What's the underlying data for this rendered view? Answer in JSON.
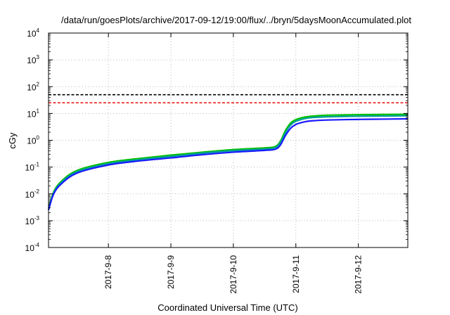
{
  "chart_data": {
    "type": "line",
    "title": "/data/run/goesPlots/archive/2017-09-12/19:00/flux/../bryn/5daysMoonAccumulated.plot",
    "xlabel": "Coordinated Universal Time (UTC)",
    "ylabel": "cGy",
    "y_scale": "log",
    "ylim": [
      0.0001,
      10000
    ],
    "y_ticks": [
      {
        "base": "10",
        "exp": "-4",
        "value": 0.0001
      },
      {
        "base": "10",
        "exp": "-3",
        "value": 0.001
      },
      {
        "base": "10",
        "exp": "-2",
        "value": 0.01
      },
      {
        "base": "10",
        "exp": "-1",
        "value": 0.1
      },
      {
        "base": "10",
        "exp": "0",
        "value": 1
      },
      {
        "base": "10",
        "exp": "1",
        "value": 10
      },
      {
        "base": "10",
        "exp": "2",
        "value": 100
      },
      {
        "base": "10",
        "exp": "3",
        "value": 1000
      },
      {
        "base": "10",
        "exp": "4",
        "value": 10000
      }
    ],
    "xlim": [
      "2017-09-07 01:00",
      "2017-09-12 19:00"
    ],
    "x_ticks": [
      "2017-9-8",
      "2017-9-9",
      "2017-9-10",
      "2017-9-11",
      "2017-9-12"
    ],
    "grid": true,
    "legend": "none",
    "thresholds": [
      {
        "value": 50,
        "color": "#000000",
        "style": "dashed"
      },
      {
        "value": 25,
        "color": "#e8231f",
        "style": "dashed"
      }
    ],
    "series": [
      {
        "color": "#00c100",
        "x": [
          "2017-09-07 01:00",
          "2017-09-07 03:00",
          "2017-09-07 06:00",
          "2017-09-07 12:00",
          "2017-09-08 00:00",
          "2017-09-08 12:00",
          "2017-09-09 00:00",
          "2017-09-09 12:00",
          "2017-09-10 00:00",
          "2017-09-10 12:00",
          "2017-09-10 16:00",
          "2017-09-10 18:00",
          "2017-09-10 20:00",
          "2017-09-10 22:00",
          "2017-09-11 00:00",
          "2017-09-11 03:00",
          "2017-09-11 06:00",
          "2017-09-11 12:00",
          "2017-09-12 00:00",
          "2017-09-12 12:00",
          "2017-09-12 19:00"
        ],
        "values": [
          0.003,
          0.012,
          0.03,
          0.075,
          0.15,
          0.21,
          0.28,
          0.36,
          0.45,
          0.52,
          0.58,
          0.9,
          2.3,
          4.4,
          5.9,
          7.2,
          7.9,
          8.6,
          9.0,
          9.2,
          9.3
        ]
      },
      {
        "color": "#009d9d",
        "x": [
          "2017-09-07 01:00",
          "2017-09-07 03:00",
          "2017-09-07 06:00",
          "2017-09-07 12:00",
          "2017-09-08 00:00",
          "2017-09-08 12:00",
          "2017-09-09 00:00",
          "2017-09-09 12:00",
          "2017-09-10 00:00",
          "2017-09-10 12:00",
          "2017-09-10 16:00",
          "2017-09-10 18:00",
          "2017-09-10 20:00",
          "2017-09-10 22:00",
          "2017-09-11 00:00",
          "2017-09-11 03:00",
          "2017-09-11 06:00",
          "2017-09-11 12:00",
          "2017-09-12 00:00",
          "2017-09-12 12:00",
          "2017-09-12 19:00"
        ],
        "values": [
          0.0028,
          0.011,
          0.027,
          0.068,
          0.135,
          0.19,
          0.25,
          0.33,
          0.41,
          0.47,
          0.53,
          0.8,
          1.9,
          3.7,
          5.1,
          6.3,
          7.0,
          7.5,
          7.9,
          8.1,
          8.2
        ]
      },
      {
        "color": "#1a1aff",
        "x": [
          "2017-09-07 01:00",
          "2017-09-07 03:00",
          "2017-09-07 06:00",
          "2017-09-07 12:00",
          "2017-09-08 00:00",
          "2017-09-08 12:00",
          "2017-09-09 00:00",
          "2017-09-09 12:00",
          "2017-09-10 00:00",
          "2017-09-10 12:00",
          "2017-09-10 16:00",
          "2017-09-10 18:00",
          "2017-09-10 20:00",
          "2017-09-10 22:00",
          "2017-09-11 00:00",
          "2017-09-11 03:00",
          "2017-09-11 06:00",
          "2017-09-11 12:00",
          "2017-09-12 00:00",
          "2017-09-12 12:00",
          "2017-09-12 19:00"
        ],
        "values": [
          0.0025,
          0.01,
          0.024,
          0.06,
          0.12,
          0.17,
          0.22,
          0.29,
          0.36,
          0.42,
          0.46,
          0.65,
          1.5,
          2.8,
          3.9,
          4.8,
          5.3,
          5.7,
          6.0,
          6.2,
          6.3
        ]
      }
    ]
  }
}
